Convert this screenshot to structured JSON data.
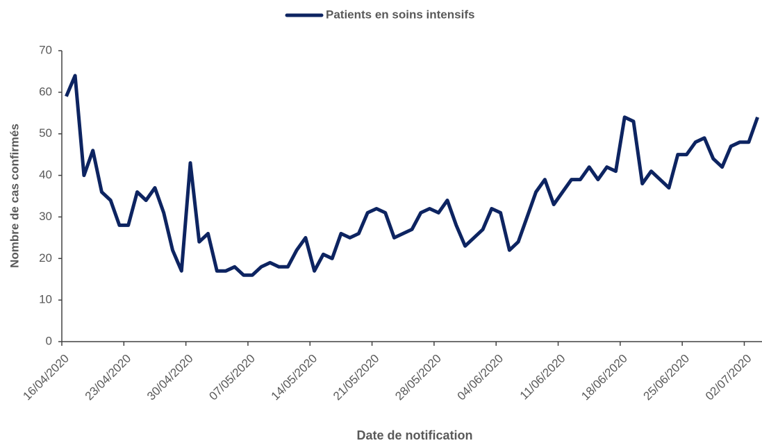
{
  "chart_data": {
    "type": "line",
    "x_label": "Date de notification",
    "y_label": "Nombre de cas confirmés",
    "categories": [
      "16/04/2020",
      null,
      null,
      null,
      null,
      null,
      null,
      "23/04/2020",
      null,
      null,
      null,
      null,
      null,
      null,
      "30/04/2020",
      null,
      null,
      null,
      null,
      null,
      null,
      "07/05/2020",
      null,
      null,
      null,
      null,
      null,
      null,
      "14/05/2020",
      null,
      null,
      null,
      null,
      null,
      null,
      "21/05/2020",
      null,
      null,
      null,
      null,
      null,
      null,
      "28/05/2020",
      null,
      null,
      null,
      null,
      null,
      null,
      "04/06/2020",
      null,
      null,
      null,
      null,
      null,
      null,
      "11/06/2020",
      null,
      null,
      null,
      null,
      null,
      null,
      "18/06/2020",
      null,
      null,
      null,
      null,
      null,
      null,
      "25/06/2020",
      null,
      null,
      null,
      null,
      null,
      null,
      "02/07/2020",
      null
    ],
    "series": [
      {
        "name": "Patients en soins intensifs",
        "color": "#0d2461",
        "values": [
          59,
          64,
          40,
          46,
          36,
          34,
          28,
          28,
          36,
          34,
          37,
          31,
          22,
          17,
          43,
          24,
          26,
          17,
          17,
          18,
          16,
          16,
          18,
          19,
          18,
          18,
          22,
          25,
          17,
          21,
          20,
          26,
          25,
          26,
          31,
          32,
          31,
          25,
          26,
          27,
          31,
          32,
          31,
          34,
          28,
          23,
          25,
          27,
          32,
          31,
          22,
          24,
          30,
          36,
          39,
          33,
          36,
          39,
          39,
          42,
          39,
          42,
          41,
          54,
          53,
          38,
          41,
          39,
          37,
          45,
          45,
          48,
          49,
          44,
          42,
          47,
          48,
          48,
          54
        ]
      }
    ],
    "ylim": [
      0,
      70
    ],
    "yticks": [
      0,
      10,
      20,
      30,
      40,
      50,
      60,
      70
    ],
    "legend": "top"
  }
}
